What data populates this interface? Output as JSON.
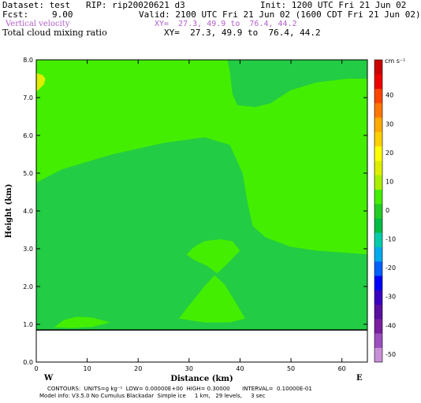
{
  "header": {
    "dataset": "Dataset: test   RIP: rip20020621 d3",
    "init": "Init: 1200 UTC Fri 21 Jun 02",
    "fcst_label": "Fcst:",
    "fcst_value": "9.00",
    "valid": "Valid: 2100 UTC Fri 21 Jun 02 (1600 CDT Fri 21 Jun 02)",
    "field1": "Vertical velocity",
    "field1_xy": "XY=  27.3, 49.9 to  76.4, 44.2",
    "field2": "Total cloud mixing ratio",
    "field2_xy": "XY=  27.3, 49.9 to  76.4, 44.2"
  },
  "footer": {
    "line1": "CONTOURS:  UNITS=g kg⁻¹  LOW= 0.00000E+00  HIGH= 0.30000       INTERVAL=  0.10000E-01",
    "line2": "Model info: V3.5.0 No Cumulus Blackadar  Simple ice     1 km,   29 levels,     3 sec"
  },
  "chart_data": {
    "type": "heatmap",
    "xlabel": "Distance (km)",
    "ylabel": "Height (km)",
    "xlim": [
      0,
      65
    ],
    "ylim": [
      0,
      8
    ],
    "x_ticks": [
      "0",
      "10",
      "20",
      "30",
      "40",
      "50",
      "60"
    ],
    "y_ticks": [
      "0.0",
      "1.0",
      "2.0",
      "3.0",
      "4.0",
      "5.0",
      "6.0",
      "7.0",
      "8.0"
    ],
    "endpoints": {
      "left": "W",
      "right": "E"
    },
    "colorbar": {
      "unit_label": "cm s⁻¹",
      "labels": [
        "-50",
        "-40",
        "-30",
        "-20",
        "-10",
        "0",
        "10",
        "20",
        "30",
        "40"
      ],
      "colors": [
        "#c78fd6",
        "#9c4fc0",
        "#7a1fa0",
        "#5a0fa0",
        "#3a00c0",
        "#0000ff",
        "#0060ff",
        "#00aaee",
        "#00ccaa",
        "#00bb44",
        "#22cc22",
        "#44ee00",
        "#aaee00",
        "#ddee00",
        "#ffff00",
        "#ffd000",
        "#ffaa00",
        "#ff7700",
        "#ff4400",
        "#ee0000",
        "#cc0000"
      ]
    },
    "fill_colors": {
      "background": "#22cc44",
      "light": "#44ee00",
      "dark": "#11bb22",
      "yellow": "#ddee00",
      "ground": "#ffffff"
    },
    "regions": [
      {
        "name": "ground",
        "points": [
          [
            0,
            0
          ],
          [
            65,
            0
          ],
          [
            65,
            0.85
          ],
          [
            0,
            0.85
          ]
        ]
      },
      {
        "name": "upper-light",
        "points": [
          [
            0,
            4.75
          ],
          [
            5,
            5.1
          ],
          [
            15,
            5.5
          ],
          [
            25,
            5.8
          ],
          [
            33,
            5.95
          ],
          [
            38,
            5.75
          ],
          [
            40.5,
            5.0
          ],
          [
            41.5,
            4.2
          ],
          [
            42.5,
            3.6
          ],
          [
            45,
            3.3
          ],
          [
            50,
            3.05
          ],
          [
            55,
            2.95
          ],
          [
            65,
            2.85
          ],
          [
            65,
            7.5
          ],
          [
            61,
            7.5
          ],
          [
            55,
            7.4
          ],
          [
            50,
            7.2
          ],
          [
            46,
            6.85
          ],
          [
            43,
            6.75
          ],
          [
            39.5,
            6.8
          ],
          [
            38.5,
            7.1
          ],
          [
            38,
            7.7
          ],
          [
            37.5,
            8.0
          ],
          [
            0,
            8.0
          ]
        ]
      },
      {
        "name": "lower-lobe",
        "points": [
          [
            28,
            1.15
          ],
          [
            30,
            1.5
          ],
          [
            33,
            2.0
          ],
          [
            35,
            2.3
          ],
          [
            37,
            2.05
          ],
          [
            39.5,
            1.5
          ],
          [
            41,
            1.15
          ],
          [
            38,
            1.05
          ],
          [
            33,
            1.05
          ]
        ]
      },
      {
        "name": "middle-lobe",
        "points": [
          [
            29.5,
            2.85
          ],
          [
            31,
            3.05
          ],
          [
            33,
            3.2
          ],
          [
            36,
            3.25
          ],
          [
            38.5,
            3.2
          ],
          [
            40,
            2.95
          ],
          [
            37.5,
            2.6
          ],
          [
            35.5,
            2.35
          ],
          [
            33.5,
            2.55
          ],
          [
            31,
            2.7
          ]
        ]
      },
      {
        "name": "bottom-left-lobe",
        "points": [
          [
            3.5,
            0.92
          ],
          [
            5.5,
            1.12
          ],
          [
            8,
            1.2
          ],
          [
            11,
            1.18
          ],
          [
            14.5,
            1.05
          ],
          [
            11,
            0.93
          ],
          [
            7,
            0.9
          ]
        ]
      },
      {
        "name": "top-left-yellow",
        "points": [
          [
            0,
            7.15
          ],
          [
            1.5,
            7.35
          ],
          [
            1.8,
            7.5
          ],
          [
            1.2,
            7.6
          ],
          [
            0,
            7.65
          ]
        ]
      }
    ]
  }
}
